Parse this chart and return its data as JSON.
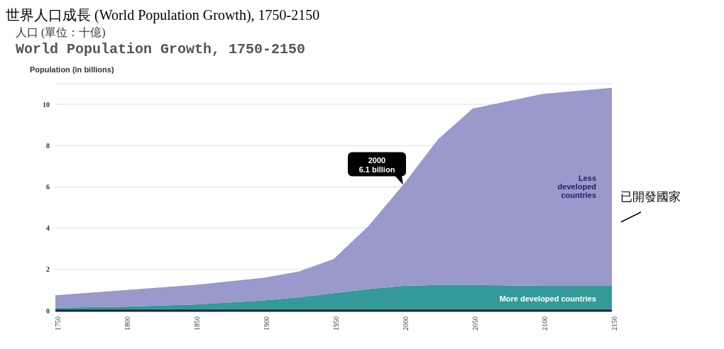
{
  "chart_data": {
    "type": "area",
    "stacked": true,
    "title": "世界人口成長 (World Population Growth), 1750-2150",
    "subtitle": "World Population Growth, 1750-2150",
    "ylabel": "Population (in billions)",
    "x": [
      1750,
      1800,
      1850,
      1900,
      1925,
      1950,
      1975,
      2000,
      2025,
      2050,
      2100,
      2150
    ],
    "series": [
      {
        "name": "More developed countries",
        "color": "#339999",
        "values": [
          0.15,
          0.2,
          0.3,
          0.5,
          0.65,
          0.85,
          1.05,
          1.2,
          1.25,
          1.25,
          1.2,
          1.2
        ]
      },
      {
        "name": "Less developed countries",
        "color": "#9999cc",
        "values": [
          0.6,
          0.8,
          0.95,
          1.1,
          1.25,
          1.65,
          3.05,
          4.9,
          7.05,
          8.55,
          9.3,
          9.6
        ]
      }
    ],
    "xlim": [
      1750,
      2150
    ],
    "xticks": [
      1750,
      1800,
      1850,
      1900,
      1950,
      2000,
      2050,
      2100,
      2150
    ],
    "ylim": [
      0,
      11
    ],
    "yticks": [
      0,
      2,
      4,
      6,
      8,
      10
    ],
    "grid": "y",
    "annotations": [
      "人口 (單位：十億)",
      {
        "text": "2000\n6.1 billion",
        "x": 2000,
        "y": 6.1
      },
      "已開發國家"
    ]
  }
}
